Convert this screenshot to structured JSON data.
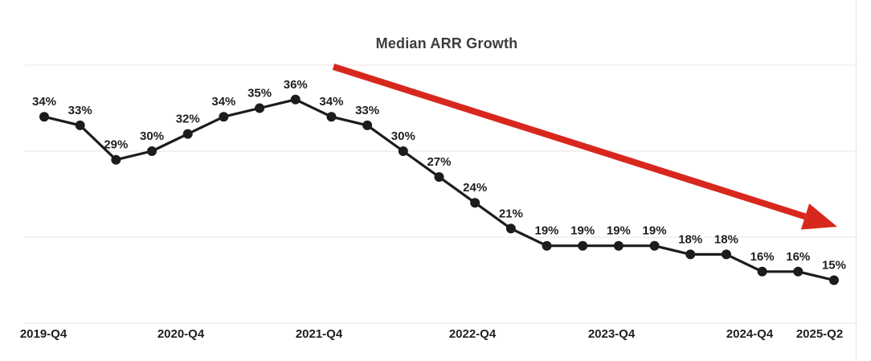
{
  "page": {
    "background": "#ffffff"
  },
  "colors": {
    "title": "#3c3c3c",
    "line": "#1c1c1c",
    "point": "#1c1c1c",
    "data_label": "#1f1f1f",
    "axis_label": "#1f1f1f",
    "grid": "#ededed",
    "right_border": "#e7e7e7",
    "arrow": "#d8281e",
    "background": "#ffffff"
  },
  "chart_data": {
    "type": "line",
    "title": "Median ARR Growth",
    "x_tick_labels": [
      "2019-Q4",
      "2020-Q4",
      "2021-Q4",
      "2022-Q4",
      "2023-Q4",
      "2024-Q4",
      "2025-Q2"
    ],
    "x_tick_point_indices": [
      0,
      4,
      8,
      12,
      16,
      20,
      22
    ],
    "series": [
      {
        "name": "Median ARR Growth",
        "values": [
          34,
          33,
          29,
          30,
          32,
          34,
          35,
          36,
          34,
          33,
          30,
          27,
          24,
          21,
          19,
          19,
          19,
          19,
          18,
          18,
          16,
          16,
          15
        ],
        "point_labels": [
          "34%",
          "33%",
          "29%",
          "30%",
          "32%",
          "34%",
          "35%",
          "36%",
          "34%",
          "33%",
          "30%",
          "27%",
          "24%",
          "21%",
          "19%",
          "19%",
          "19%",
          "19%",
          "18%",
          "18%",
          "16%",
          "16%",
          "15%"
        ]
      }
    ],
    "unit": "%",
    "ylim": [
      10,
      40
    ],
    "gridline_values": [
      40,
      30,
      20,
      10
    ],
    "grid": "horizontal-only",
    "y_axis_labels_visible": false,
    "legend_position": "none",
    "annotations": [
      {
        "type": "arrow",
        "direction": "down-right",
        "color": "#d8281e",
        "meaning": "declining trend"
      }
    ]
  }
}
